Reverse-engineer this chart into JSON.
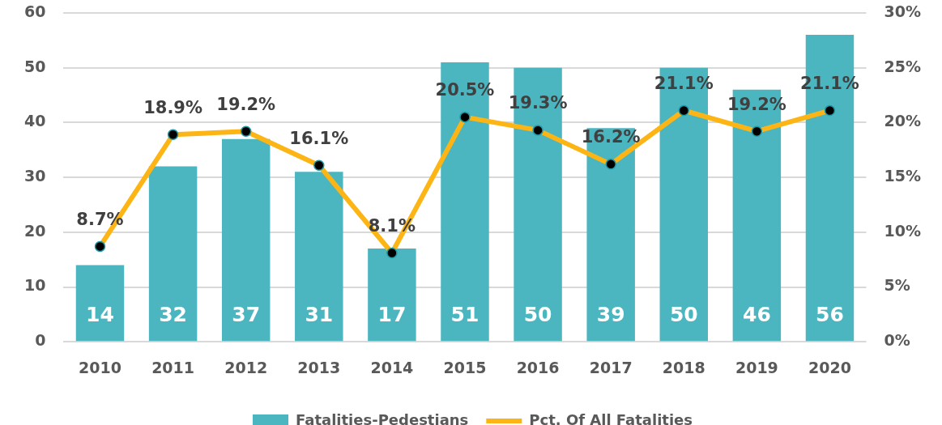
{
  "chart_data": {
    "type": "bar",
    "categories": [
      "2010",
      "2011",
      "2012",
      "2013",
      "2014",
      "2015",
      "2016",
      "2017",
      "2018",
      "2019",
      "2020"
    ],
    "series": [
      {
        "name": "Fatalities-Pedestians",
        "color": "#4bb5c0",
        "values": [
          14,
          32,
          37,
          31,
          17,
          51,
          50,
          39,
          50,
          46,
          56
        ],
        "value_labels": [
          "14",
          "32",
          "37",
          "31",
          "17",
          "51",
          "50",
          "39",
          "50",
          "46",
          "56"
        ]
      },
      {
        "name": "Pct. Of All Fatalities",
        "type": "line",
        "axis": "y2",
        "color": "#fdb515",
        "marker": "circle",
        "values": [
          8.7,
          18.9,
          19.2,
          16.1,
          8.1,
          20.5,
          19.3,
          16.2,
          21.1,
          19.2,
          21.1
        ],
        "value_labels": [
          "8.7%",
          "18.9%",
          "19.2%",
          "16.1%",
          "8.1%",
          "20.5%",
          "19.3%",
          "16.2%",
          "21.1%",
          "19.2%",
          "21.1%"
        ]
      }
    ],
    "ylim": [
      0,
      60
    ],
    "yticks": [
      0,
      10,
      20,
      30,
      40,
      50,
      60
    ],
    "y2lim": [
      0,
      30
    ],
    "y2ticks": [
      {
        "value": 0,
        "label": "0%"
      },
      {
        "value": 5,
        "label": "5%"
      },
      {
        "value": 10,
        "label": "10%"
      },
      {
        "value": 15,
        "label": "15%"
      },
      {
        "value": 20,
        "label": "20%"
      },
      {
        "value": 25,
        "label": "25%"
      },
      {
        "value": 30,
        "label": "30%"
      }
    ],
    "grid": "y",
    "legend": "bottom"
  }
}
